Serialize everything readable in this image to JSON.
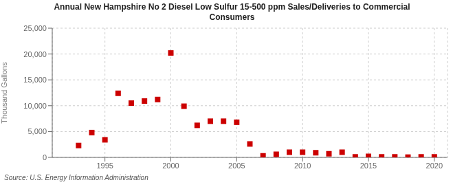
{
  "chart_data": {
    "type": "scatter",
    "title": "Annual New Hampshire No 2 Diesel Low Sulfur 15-500 ppm Sales/Deliveries to Commercial\nConsumers",
    "ylabel": "Thousand Gallons",
    "annotations": [
      "Source: U.S. Energy Information Administration"
    ],
    "x": [
      1993,
      1994,
      1995,
      1996,
      1997,
      1998,
      1999,
      2000,
      2001,
      2002,
      2003,
      2004,
      2005,
      2006,
      2007,
      2008,
      2009,
      2010,
      2011,
      2012,
      2013,
      2014,
      2015,
      2016,
      2017,
      2018,
      2019,
      2020
    ],
    "values": [
      2300,
      4800,
      3400,
      12400,
      10500,
      10900,
      11200,
      20200,
      9900,
      6200,
      7000,
      7000,
      6800,
      2600,
      300,
      600,
      1000,
      1000,
      900,
      700,
      1000,
      100,
      200,
      100,
      100,
      50,
      100,
      100
    ],
    "color": "#cc0000",
    "marker": "square",
    "xlim": [
      1991,
      2021
    ],
    "ylim": [
      0,
      25000
    ],
    "xticks": [
      1995,
      2000,
      2005,
      2010,
      2015,
      2020
    ],
    "yticks": [
      0,
      {
        "value": 5000,
        "label": "5,000"
      },
      {
        "value": 10000,
        "label": "10,000"
      },
      {
        "value": 15000,
        "label": "15,000"
      },
      {
        "value": 20000,
        "label": "20,000"
      },
      {
        "value": 25000,
        "label": "25,000"
      }
    ],
    "grid": true
  }
}
